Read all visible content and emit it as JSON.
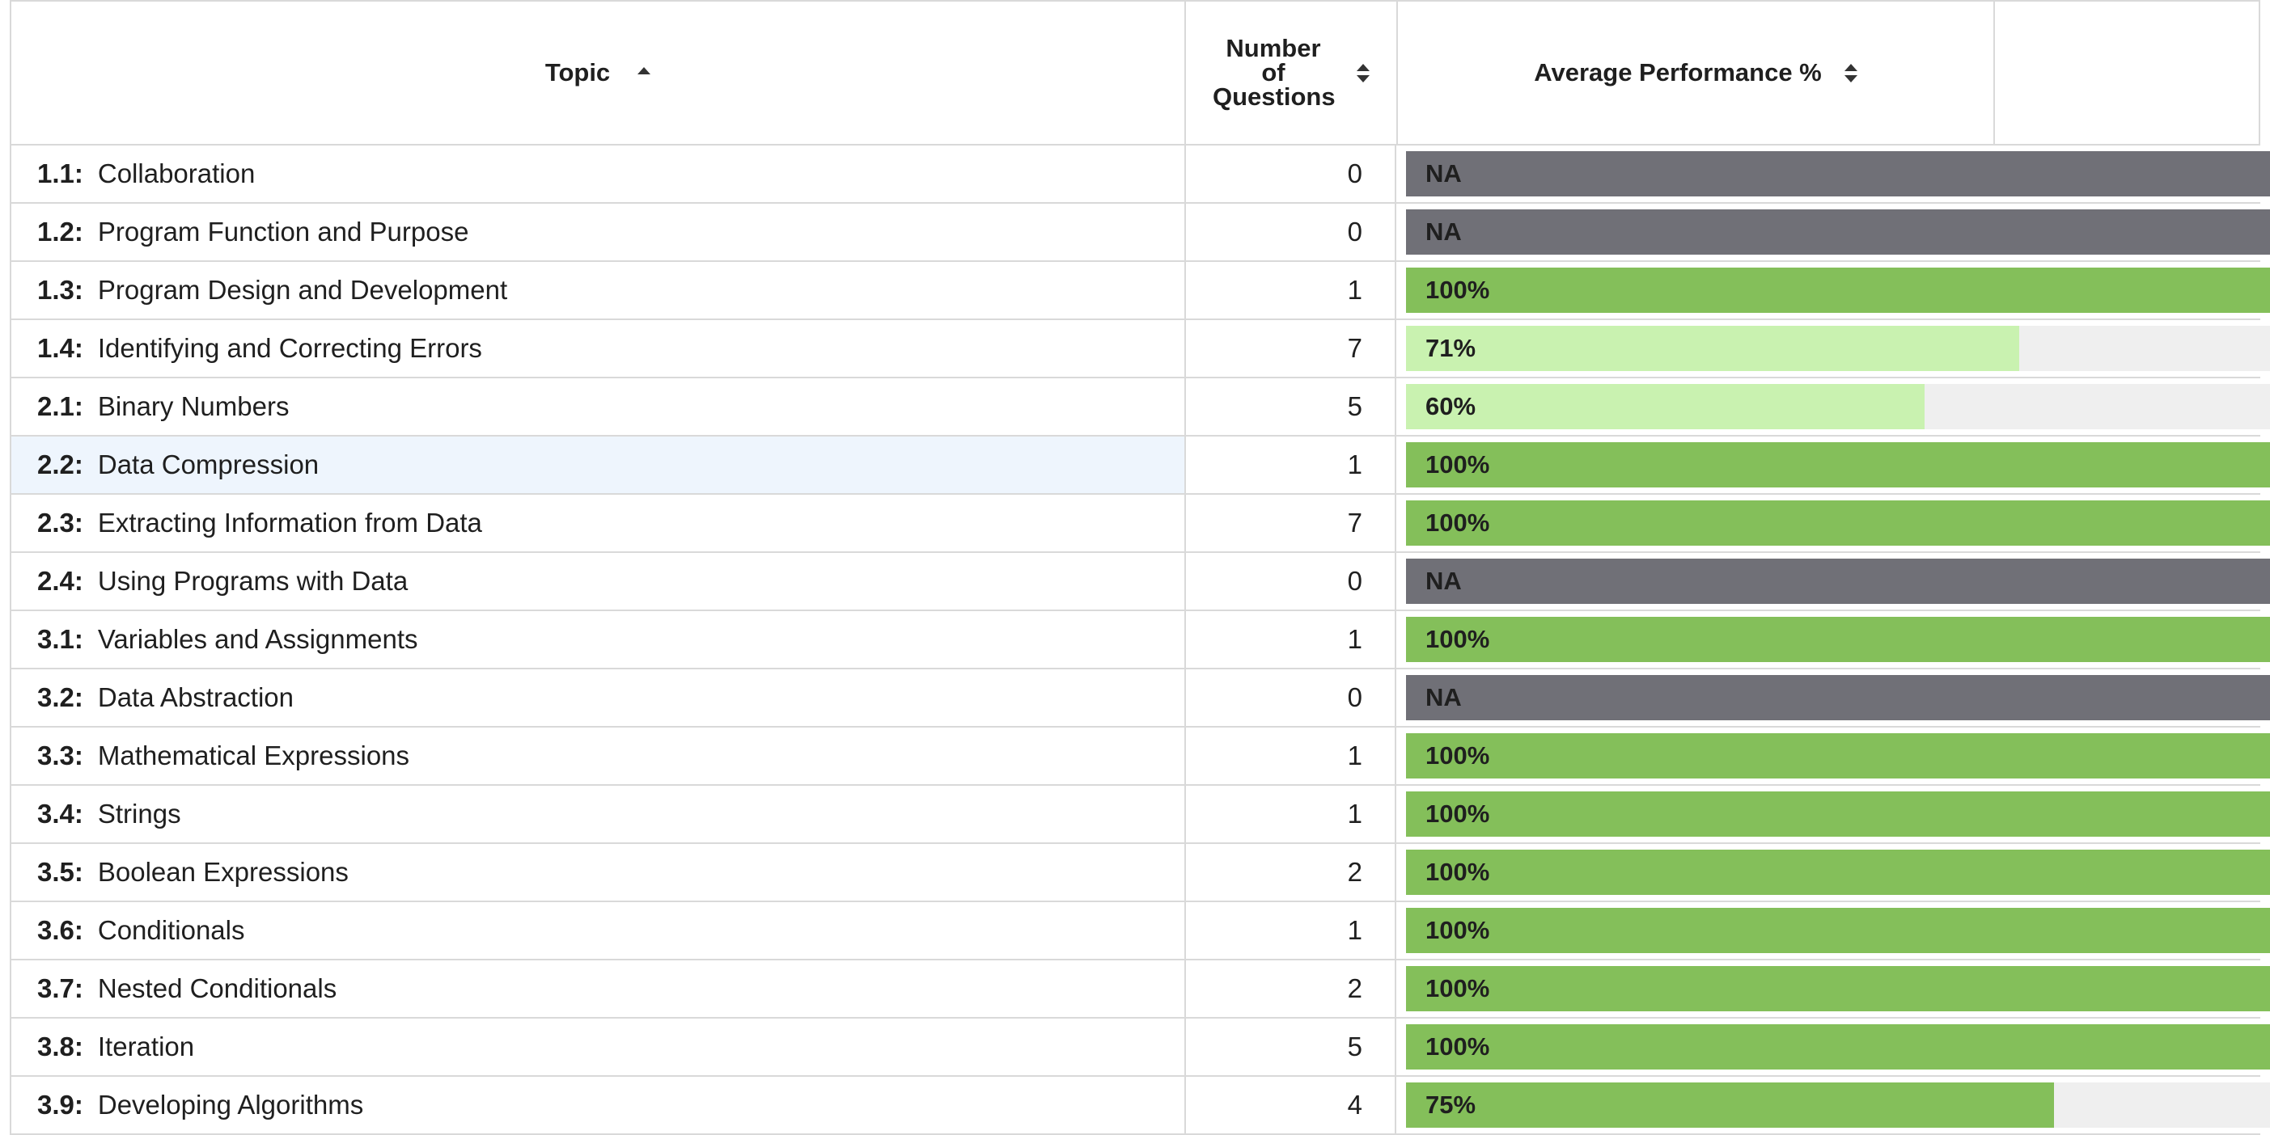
{
  "header": {
    "topic": "Topic",
    "num_lines": [
      "Number",
      "of",
      "Questions"
    ],
    "performance": "Average Performance %"
  },
  "colors": {
    "na": "#707077",
    "full": "#84bf5a",
    "partial": "#c9f2b0",
    "track": "#efefef"
  },
  "rows": [
    {
      "code": "1.1:",
      "name": "Collaboration",
      "count": "0",
      "label": "NA",
      "pct": 100,
      "status": "na"
    },
    {
      "code": "1.2:",
      "name": "Program Function and Purpose",
      "count": "0",
      "label": "NA",
      "pct": 100,
      "status": "na"
    },
    {
      "code": "1.3:",
      "name": "Program Design and Development",
      "count": "1",
      "label": "100%",
      "pct": 100,
      "status": "full"
    },
    {
      "code": "1.4:",
      "name": "Identifying and Correcting Errors",
      "count": "7",
      "label": "71%",
      "pct": 71,
      "status": "partial"
    },
    {
      "code": "2.1:",
      "name": "Binary Numbers",
      "count": "5",
      "label": "60%",
      "pct": 60,
      "status": "partial"
    },
    {
      "code": "2.2:",
      "name": "Data Compression",
      "count": "1",
      "label": "100%",
      "pct": 100,
      "status": "full",
      "highlight": true
    },
    {
      "code": "2.3:",
      "name": "Extracting Information from Data",
      "count": "7",
      "label": "100%",
      "pct": 100,
      "status": "full"
    },
    {
      "code": "2.4:",
      "name": "Using Programs with Data",
      "count": "0",
      "label": "NA",
      "pct": 100,
      "status": "na"
    },
    {
      "code": "3.1:",
      "name": "Variables and Assignments",
      "count": "1",
      "label": "100%",
      "pct": 100,
      "status": "full"
    },
    {
      "code": "3.2:",
      "name": "Data Abstraction",
      "count": "0",
      "label": "NA",
      "pct": 100,
      "status": "na"
    },
    {
      "code": "3.3:",
      "name": "Mathematical Expressions",
      "count": "1",
      "label": "100%",
      "pct": 100,
      "status": "full"
    },
    {
      "code": "3.4:",
      "name": "Strings",
      "count": "1",
      "label": "100%",
      "pct": 100,
      "status": "full"
    },
    {
      "code": "3.5:",
      "name": "Boolean Expressions",
      "count": "2",
      "label": "100%",
      "pct": 100,
      "status": "full"
    },
    {
      "code": "3.6:",
      "name": "Conditionals",
      "count": "1",
      "label": "100%",
      "pct": 100,
      "status": "full"
    },
    {
      "code": "3.7:",
      "name": "Nested Conditionals",
      "count": "2",
      "label": "100%",
      "pct": 100,
      "status": "full"
    },
    {
      "code": "3.8:",
      "name": "Iteration",
      "count": "5",
      "label": "100%",
      "pct": 100,
      "status": "full"
    },
    {
      "code": "3.9:",
      "name": "Developing Algorithms",
      "count": "4",
      "label": "75%",
      "pct": 75,
      "status": "full"
    }
  ]
}
